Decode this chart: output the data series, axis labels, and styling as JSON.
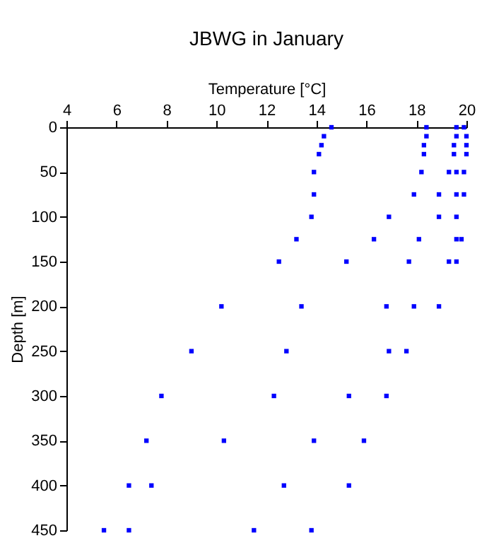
{
  "chart_data": {
    "type": "scatter",
    "title": "JBWG in January",
    "xlabel": "Temperature [°C]",
    "ylabel": "Depth [m]",
    "x": [
      14.6,
      18.4,
      19.6,
      19.9,
      14.3,
      18.4,
      19.6,
      20.0,
      14.2,
      18.3,
      19.5,
      20.0,
      14.1,
      18.3,
      19.5,
      20.0,
      13.9,
      18.2,
      19.3,
      19.6,
      19.9,
      13.9,
      17.9,
      18.9,
      19.6,
      19.9,
      13.8,
      16.9,
      18.9,
      19.6,
      13.2,
      16.3,
      18.1,
      19.6,
      19.8,
      12.5,
      15.2,
      17.7,
      19.3,
      19.6,
      10.2,
      13.4,
      16.8,
      17.9,
      18.9,
      9.0,
      12.8,
      16.9,
      17.6,
      7.8,
      12.3,
      15.3,
      16.8,
      7.2,
      10.3,
      13.9,
      15.9,
      6.5,
      7.4,
      12.7,
      15.3,
      5.5,
      6.5,
      11.5,
      13.8
    ],
    "values": [
      0,
      0,
      0,
      0,
      10,
      10,
      10,
      10,
      20,
      20,
      20,
      20,
      30,
      30,
      30,
      30,
      50,
      50,
      50,
      50,
      50,
      75,
      75,
      75,
      75,
      75,
      100,
      100,
      100,
      100,
      125,
      125,
      125,
      125,
      125,
      150,
      150,
      150,
      150,
      150,
      200,
      200,
      200,
      200,
      200,
      250,
      250,
      250,
      250,
      300,
      300,
      300,
      300,
      350,
      350,
      350,
      350,
      400,
      400,
      400,
      400,
      450,
      450,
      450,
      450
    ],
    "color": "#0000ff",
    "marker": "square",
    "xlim": [
      4,
      20
    ],
    "xticks": [
      4,
      6,
      8,
      10,
      12,
      14,
      16,
      18,
      20
    ],
    "ylim": [
      450,
      0
    ],
    "yticks": [
      0,
      50,
      100,
      150,
      200,
      250,
      300,
      350,
      400,
      450
    ],
    "grid": false
  }
}
